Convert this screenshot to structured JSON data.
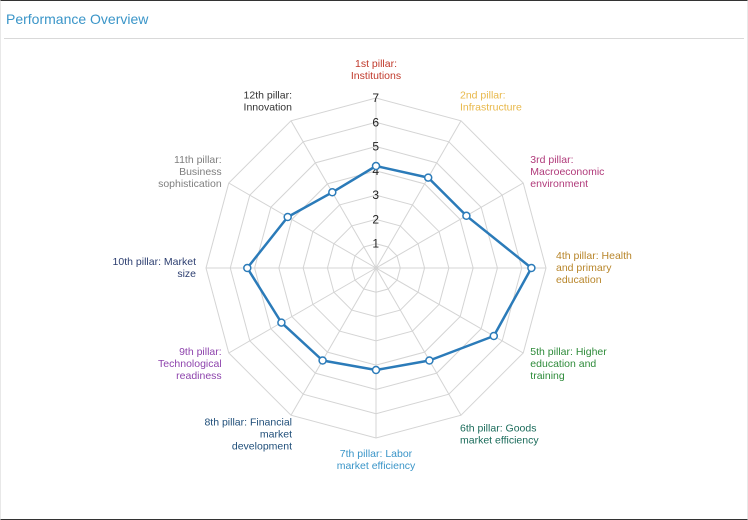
{
  "panel": {
    "title": "Performance Overview"
  },
  "colors": {
    "series": "#2b7bb9",
    "grid": "#d4d4d4",
    "title": "#3a95c8"
  },
  "chart_data": {
    "type": "radar",
    "categories": [
      "1st pillar: Institutions",
      "2nd pillar: Infrastructure",
      "3rd pillar: Macroeconomic environment",
      "4th pillar: Health and primary education",
      "5th pillar: Higher education and training",
      "6th pillar: Goods market efficiency",
      "7th pillar: Labor market efficiency",
      "8th pillar: Financial market development",
      "9th pillar: Technological readiness",
      "10th pillar: Market size",
      "11th pillar: Business sophistication",
      "12th pillar: Innovation"
    ],
    "category_label_lines": [
      [
        "1st pillar:",
        "Institutions"
      ],
      [
        "2nd pillar:",
        "Infrastructure"
      ],
      [
        "3rd pillar:",
        "Macroeconomic",
        "environment"
      ],
      [
        "4th pillar: Health",
        "and primary",
        "education"
      ],
      [
        "5th pillar: Higher",
        "education and",
        "training"
      ],
      [
        "6th pillar: Goods",
        "market efficiency"
      ],
      [
        "7th pillar: Labor",
        "market efficiency"
      ],
      [
        "8th pillar: Financial",
        "market",
        "development"
      ],
      [
        "9th pillar:",
        "Technological",
        "readiness"
      ],
      [
        "10th pillar: Market",
        "size"
      ],
      [
        "11th pillar:",
        "Business",
        "sophistication"
      ],
      [
        "12th pillar:",
        "Innovation"
      ]
    ],
    "category_colors": [
      "#c0392b",
      "#e8b84a",
      "#b03a7a",
      "#b8862b",
      "#2e8b3a",
      "#1a6b5a",
      "#3a95c8",
      "#1f4e79",
      "#8e44ad",
      "#2c3e70",
      "#7f7f7f",
      "#333333"
    ],
    "series": [
      {
        "values": [
          4.2,
          4.3,
          4.3,
          6.4,
          5.6,
          4.4,
          4.2,
          4.4,
          4.5,
          5.3,
          4.2,
          3.6
        ]
      }
    ],
    "ylim": [
      0,
      7
    ],
    "ticks": [
      "1",
      "2",
      "3",
      "4",
      "5",
      "6",
      "7"
    ],
    "grid": true,
    "legend": "none"
  }
}
